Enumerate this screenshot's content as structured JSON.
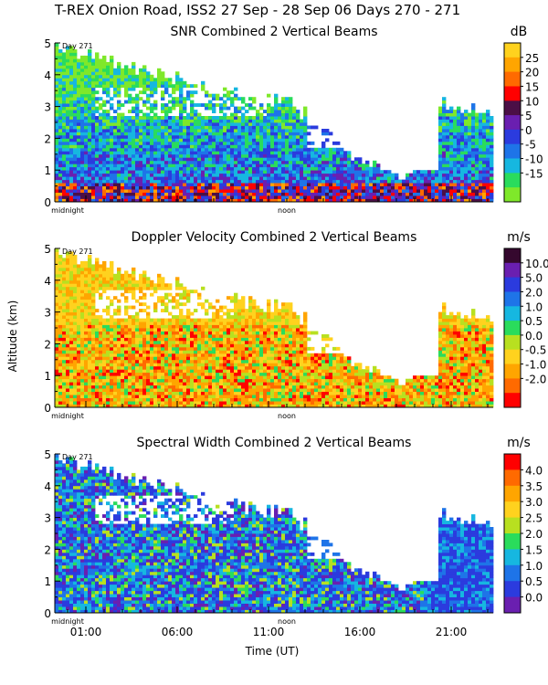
{
  "figure": {
    "title": "T-REX Onion Road, ISS2  27 Sep - 28 Sep 06 Days 270 - 271",
    "xlabel": "Time (UT)",
    "ylabel": "Altitude (km)",
    "x_ticks": [
      "01:00",
      "06:00",
      "11:00",
      "16:00",
      "21:00"
    ],
    "x_tick_hours": [
      1,
      6,
      11,
      16,
      21
    ],
    "marker_midnight": "midnight",
    "marker_noon": "noon",
    "day_label": "Day 271"
  },
  "chart_data": [
    {
      "type": "heatmap",
      "title": "SNR Combined 2 Vertical Beams",
      "units": "dB",
      "xlim": [
        -0.7,
        23.3
      ],
      "ylim": [
        0,
        5
      ],
      "y_ticks": [
        "0",
        "1",
        "2",
        "3",
        "4",
        "5"
      ],
      "colorbar": {
        "labels": [
          "25",
          "20",
          "15",
          "10",
          "5",
          "0",
          "-5",
          "-10",
          "-15"
        ],
        "colors": [
          "#ffd21e",
          "#ffa500",
          "#ff6a00",
          "#ff0000",
          "#4b0f46",
          "#6a1fb0",
          "#2b3bde",
          "#1e74e8",
          "#16b7e0",
          "#2adc5c",
          "#7fe82a"
        ]
      }
    },
    {
      "type": "heatmap",
      "title": "Doppler Velocity Combined 2 Vertical Beams",
      "units": "m/s",
      "xlim": [
        -0.7,
        23.3
      ],
      "ylim": [
        0,
        5
      ],
      "y_ticks": [
        "0",
        "1",
        "2",
        "3",
        "4",
        "5"
      ],
      "colorbar": {
        "labels": [
          "10.0",
          "5.0",
          "2.0",
          "1.0",
          "0.5",
          "0.0",
          "-0.5",
          "-1.0",
          "-2.0"
        ],
        "colors": [
          "#35082e",
          "#6a1fb0",
          "#2b3bde",
          "#1e74e8",
          "#16b7e0",
          "#2adc5c",
          "#b8e020",
          "#ffd21e",
          "#ffa500",
          "#ff6a00",
          "#ff0000"
        ]
      }
    },
    {
      "type": "heatmap",
      "title": "Spectral Width Combined 2 Vertical Beams",
      "units": "m/s",
      "xlim": [
        -0.7,
        23.3
      ],
      "ylim": [
        0,
        5
      ],
      "y_ticks": [
        "0",
        "1",
        "2",
        "3",
        "4",
        "5"
      ],
      "colorbar": {
        "labels": [
          "4.0",
          "3.5",
          "3.0",
          "2.5",
          "2.0",
          "1.5",
          "1.0",
          "0.5",
          "0.0"
        ],
        "colors": [
          "#ff0000",
          "#ff6a00",
          "#ffa500",
          "#ffd21e",
          "#b8e020",
          "#2adc5c",
          "#16b7e0",
          "#1e74e8",
          "#2b3bde",
          "#6a1fb0"
        ]
      }
    }
  ]
}
